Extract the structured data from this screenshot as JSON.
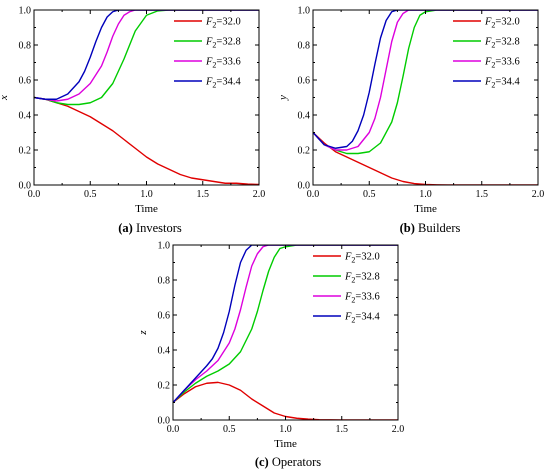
{
  "chart_data": [
    {
      "id": "a",
      "type": "line",
      "caption_letter": "(a)",
      "caption_text": " Investors",
      "xlabel": "Time",
      "ylabel": "x",
      "xlim": [
        0,
        2.0
      ],
      "ylim": [
        0,
        1.0
      ],
      "xticks": [
        "0.0",
        "0.5",
        "1.0",
        "1.5",
        "2.0"
      ],
      "yticks": [
        "0.0",
        "0.2",
        "0.4",
        "0.6",
        "0.8",
        "1.0"
      ],
      "legend_position": "top-right",
      "series": [
        {
          "name": "F2=32.0",
          "label_var": "F",
          "label_sub": "2",
          "label_val": "=32.0",
          "color": "#e00000",
          "x": [
            0,
            0.1,
            0.2,
            0.3,
            0.4,
            0.5,
            0.6,
            0.7,
            0.8,
            0.9,
            1.0,
            1.1,
            1.2,
            1.3,
            1.4,
            1.5,
            1.6,
            1.7,
            1.8,
            1.9,
            2.0
          ],
          "y": [
            0.5,
            0.49,
            0.47,
            0.45,
            0.42,
            0.39,
            0.35,
            0.31,
            0.26,
            0.21,
            0.16,
            0.12,
            0.09,
            0.06,
            0.04,
            0.03,
            0.02,
            0.01,
            0.01,
            0.005,
            0.003
          ]
        },
        {
          "name": "F2=32.8",
          "label_var": "F",
          "label_sub": "2",
          "label_val": "=32.8",
          "color": "#00cc00",
          "x": [
            0,
            0.1,
            0.2,
            0.3,
            0.4,
            0.5,
            0.6,
            0.7,
            0.8,
            0.9,
            1.0,
            1.1,
            1.2,
            1.4,
            2.0
          ],
          "y": [
            0.5,
            0.49,
            0.47,
            0.46,
            0.46,
            0.47,
            0.5,
            0.58,
            0.72,
            0.88,
            0.97,
            0.995,
            1.0,
            1.0,
            1.0
          ]
        },
        {
          "name": "F2=33.6",
          "label_var": "F",
          "label_sub": "2",
          "label_val": "=33.6",
          "color": "#dd00dd",
          "x": [
            0,
            0.1,
            0.2,
            0.3,
            0.4,
            0.5,
            0.6,
            0.65,
            0.7,
            0.75,
            0.8,
            0.85,
            0.9,
            1.0,
            1.2,
            2.0
          ],
          "y": [
            0.5,
            0.49,
            0.48,
            0.49,
            0.52,
            0.58,
            0.68,
            0.76,
            0.85,
            0.92,
            0.97,
            0.99,
            1.0,
            1.0,
            1.0,
            1.0
          ]
        },
        {
          "name": "F2=34.4",
          "label_var": "F",
          "label_sub": "2",
          "label_val": "=34.4",
          "color": "#0000bb",
          "x": [
            0,
            0.1,
            0.2,
            0.3,
            0.4,
            0.45,
            0.5,
            0.55,
            0.6,
            0.65,
            0.7,
            0.75,
            0.8,
            1.0,
            2.0
          ],
          "y": [
            0.5,
            0.49,
            0.49,
            0.52,
            0.59,
            0.65,
            0.73,
            0.82,
            0.9,
            0.96,
            0.99,
            1.0,
            1.0,
            1.0,
            1.0
          ]
        }
      ]
    },
    {
      "id": "b",
      "type": "line",
      "caption_letter": "(b)",
      "caption_text": " Builders",
      "xlabel": "Time",
      "ylabel": "y",
      "xlim": [
        0,
        2.0
      ],
      "ylim": [
        0,
        1.0
      ],
      "xticks": [
        "0.0",
        "0.5",
        "1.0",
        "1.5",
        "2.0"
      ],
      "yticks": [
        "0.0",
        "0.2",
        "0.4",
        "0.6",
        "0.8",
        "1.0"
      ],
      "legend_position": "top-right",
      "series": [
        {
          "name": "F2=32.0",
          "label_var": "F",
          "label_sub": "2",
          "label_val": "=32.0",
          "color": "#e00000",
          "x": [
            0,
            0.1,
            0.2,
            0.3,
            0.4,
            0.5,
            0.6,
            0.7,
            0.8,
            0.9,
            1.0,
            1.1,
            1.2,
            1.4,
            2.0
          ],
          "y": [
            0.3,
            0.24,
            0.19,
            0.16,
            0.13,
            0.1,
            0.07,
            0.04,
            0.02,
            0.008,
            0.003,
            0.001,
            0.0,
            0.0,
            0.0
          ]
        },
        {
          "name": "F2=32.8",
          "label_var": "F",
          "label_sub": "2",
          "label_val": "=32.8",
          "color": "#00cc00",
          "x": [
            0,
            0.1,
            0.2,
            0.3,
            0.4,
            0.5,
            0.6,
            0.7,
            0.75,
            0.8,
            0.85,
            0.9,
            0.95,
            1.0,
            1.1,
            1.2,
            2.0
          ],
          "y": [
            0.3,
            0.23,
            0.2,
            0.18,
            0.18,
            0.19,
            0.24,
            0.36,
            0.47,
            0.62,
            0.78,
            0.9,
            0.97,
            0.99,
            1.0,
            1.0,
            1.0
          ]
        },
        {
          "name": "F2=33.6",
          "label_var": "F",
          "label_sub": "2",
          "label_val": "=33.6",
          "color": "#dd00dd",
          "x": [
            0,
            0.1,
            0.2,
            0.3,
            0.4,
            0.5,
            0.55,
            0.6,
            0.65,
            0.7,
            0.75,
            0.8,
            0.85,
            0.9,
            1.0,
            2.0
          ],
          "y": [
            0.3,
            0.23,
            0.2,
            0.2,
            0.22,
            0.3,
            0.38,
            0.5,
            0.66,
            0.82,
            0.93,
            0.98,
            1.0,
            1.0,
            1.0,
            1.0
          ]
        },
        {
          "name": "F2=34.4",
          "label_var": "F",
          "label_sub": "2",
          "label_val": "=34.4",
          "color": "#0000bb",
          "x": [
            0,
            0.1,
            0.2,
            0.3,
            0.35,
            0.4,
            0.45,
            0.5,
            0.55,
            0.6,
            0.65,
            0.7,
            0.75,
            0.8,
            1.0,
            2.0
          ],
          "y": [
            0.3,
            0.23,
            0.21,
            0.22,
            0.25,
            0.31,
            0.4,
            0.53,
            0.69,
            0.84,
            0.94,
            0.99,
            1.0,
            1.0,
            1.0,
            1.0
          ]
        }
      ]
    },
    {
      "id": "c",
      "type": "line",
      "caption_letter": "(c)",
      "caption_text": " Operators",
      "xlabel": "Time",
      "ylabel": "z",
      "xlim": [
        0,
        2.0
      ],
      "ylim": [
        0,
        1.0
      ],
      "xticks": [
        "0.0",
        "0.5",
        "1.0",
        "1.5",
        "2.0"
      ],
      "yticks": [
        "0.0",
        "0.2",
        "0.4",
        "0.6",
        "0.8",
        "1.0"
      ],
      "legend_position": "top-right",
      "series": [
        {
          "name": "F2=32.0",
          "label_var": "F",
          "label_sub": "2",
          "label_val": "=32.0",
          "color": "#e00000",
          "x": [
            0,
            0.1,
            0.2,
            0.3,
            0.4,
            0.5,
            0.6,
            0.7,
            0.8,
            0.9,
            1.0,
            1.1,
            1.2,
            1.3,
            1.5,
            2.0
          ],
          "y": [
            0.1,
            0.15,
            0.19,
            0.21,
            0.215,
            0.2,
            0.17,
            0.12,
            0.08,
            0.04,
            0.02,
            0.01,
            0.005,
            0.002,
            0.0,
            0.0
          ]
        },
        {
          "name": "F2=32.8",
          "label_var": "F",
          "label_sub": "2",
          "label_val": "=32.8",
          "color": "#00cc00",
          "x": [
            0,
            0.1,
            0.2,
            0.3,
            0.4,
            0.5,
            0.6,
            0.7,
            0.75,
            0.8,
            0.85,
            0.9,
            0.95,
            1.0,
            1.1,
            1.2,
            2.0
          ],
          "y": [
            0.1,
            0.16,
            0.21,
            0.25,
            0.28,
            0.32,
            0.39,
            0.52,
            0.62,
            0.74,
            0.85,
            0.93,
            0.98,
            0.99,
            1.0,
            1.0,
            1.0
          ]
        },
        {
          "name": "F2=33.6",
          "label_var": "F",
          "label_sub": "2",
          "label_val": "=33.6",
          "color": "#dd00dd",
          "x": [
            0,
            0.1,
            0.2,
            0.3,
            0.4,
            0.5,
            0.55,
            0.6,
            0.65,
            0.7,
            0.75,
            0.8,
            0.85,
            0.9,
            1.0,
            2.0
          ],
          "y": [
            0.1,
            0.17,
            0.23,
            0.28,
            0.34,
            0.44,
            0.52,
            0.63,
            0.76,
            0.88,
            0.95,
            0.99,
            1.0,
            1.0,
            1.0,
            1.0
          ]
        },
        {
          "name": "F2=34.4",
          "label_var": "F",
          "label_sub": "2",
          "label_val": "=34.4",
          "color": "#0000bb",
          "x": [
            0,
            0.1,
            0.2,
            0.3,
            0.35,
            0.4,
            0.45,
            0.5,
            0.55,
            0.6,
            0.65,
            0.7,
            0.75,
            0.8,
            1.0,
            2.0
          ],
          "y": [
            0.1,
            0.17,
            0.24,
            0.31,
            0.35,
            0.41,
            0.5,
            0.62,
            0.77,
            0.9,
            0.97,
            1.0,
            1.0,
            1.0,
            1.0,
            1.0
          ]
        }
      ]
    }
  ]
}
